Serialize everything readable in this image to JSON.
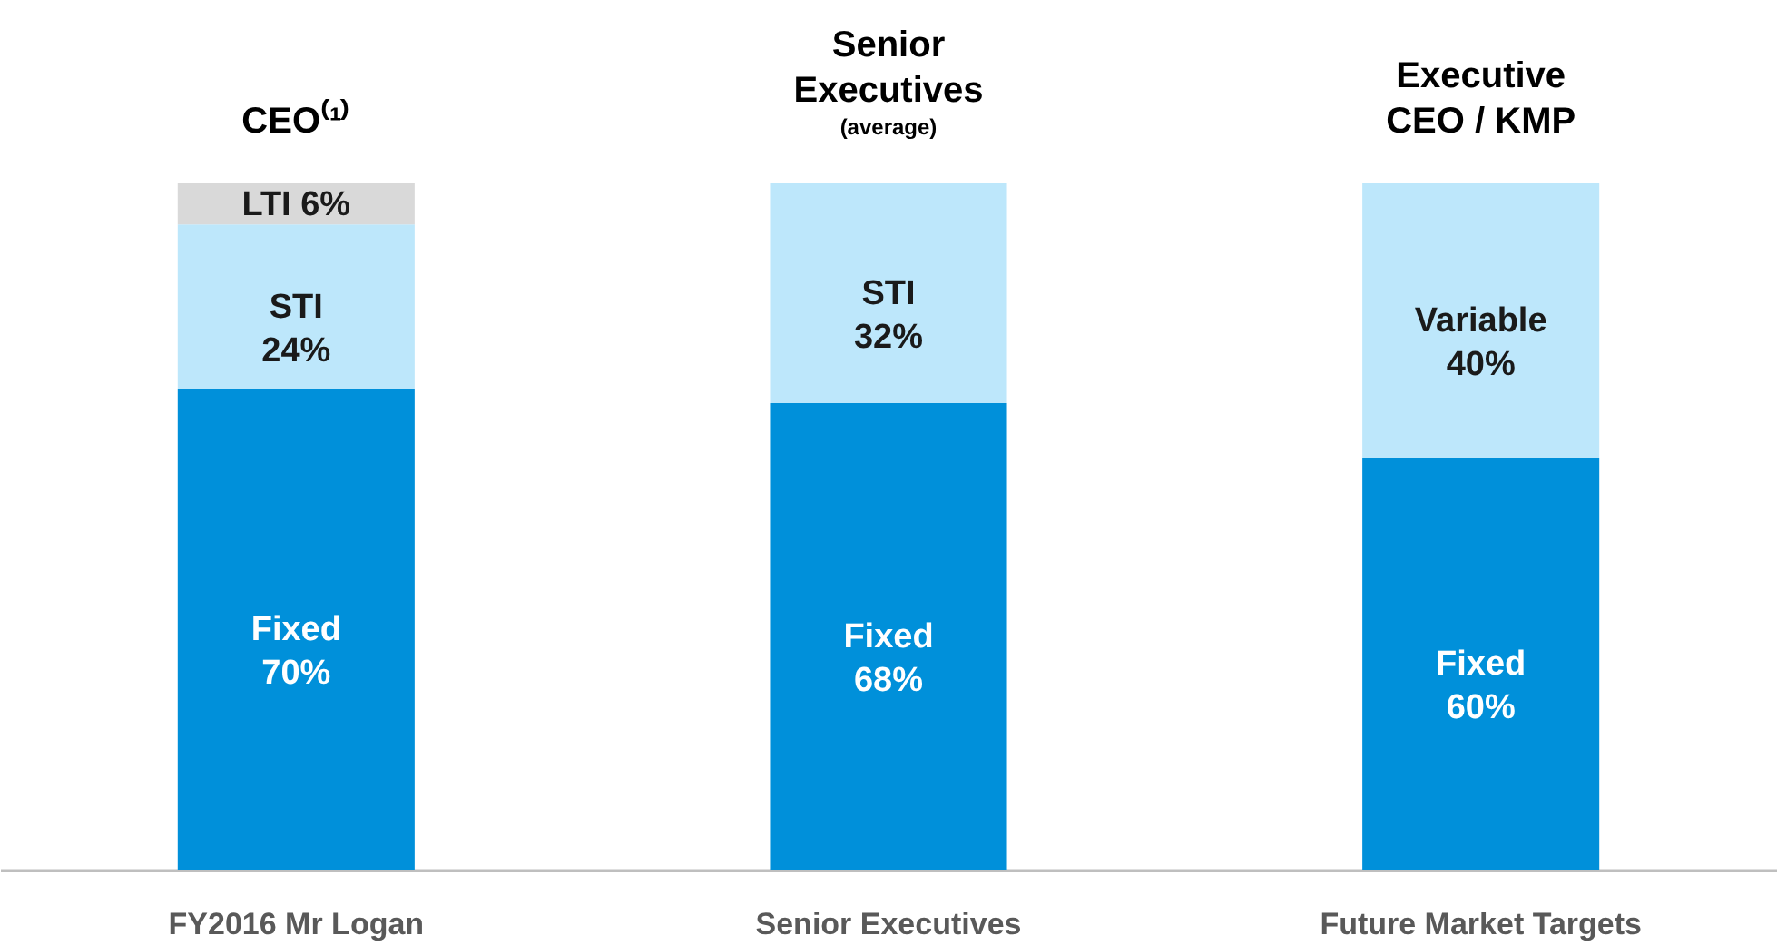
{
  "chart_data": {
    "type": "bar",
    "stacked": true,
    "categories": [
      "FY2016 Mr Logan",
      "Senior Executives",
      "Future Market Targets"
    ],
    "series": [
      {
        "name": "Fixed",
        "color": "#0090da",
        "values": [
          70,
          68,
          60
        ],
        "value_labels": [
          "70%",
          "68%",
          "60%"
        ]
      },
      {
        "name": "STI",
        "color": "#bde7fb",
        "values": [
          24,
          32,
          null
        ],
        "value_labels": [
          "24%",
          "32%",
          null
        ]
      },
      {
        "name": "LTI",
        "color": "#d9d9d9",
        "values": [
          6,
          null,
          null
        ],
        "value_labels": [
          "6%",
          null,
          null
        ]
      },
      {
        "name": "Variable",
        "color": "#bde7fb",
        "values": [
          null,
          null,
          40
        ],
        "value_labels": [
          null,
          null,
          "40%"
        ]
      }
    ],
    "annotations": [
      {
        "text": "CEO⁽¹⁾",
        "x": "FY2016 Mr Logan",
        "y": 100
      },
      {
        "text": "Senior Executives",
        "x": "Senior Executives",
        "y": 100
      },
      {
        "text": "(average)",
        "x": "Senior Executives",
        "y": 100
      },
      {
        "text": "Executive CEO / KMP",
        "x": "Future Market Targets",
        "y": 100
      }
    ],
    "legend": false,
    "grid": false
  }
}
